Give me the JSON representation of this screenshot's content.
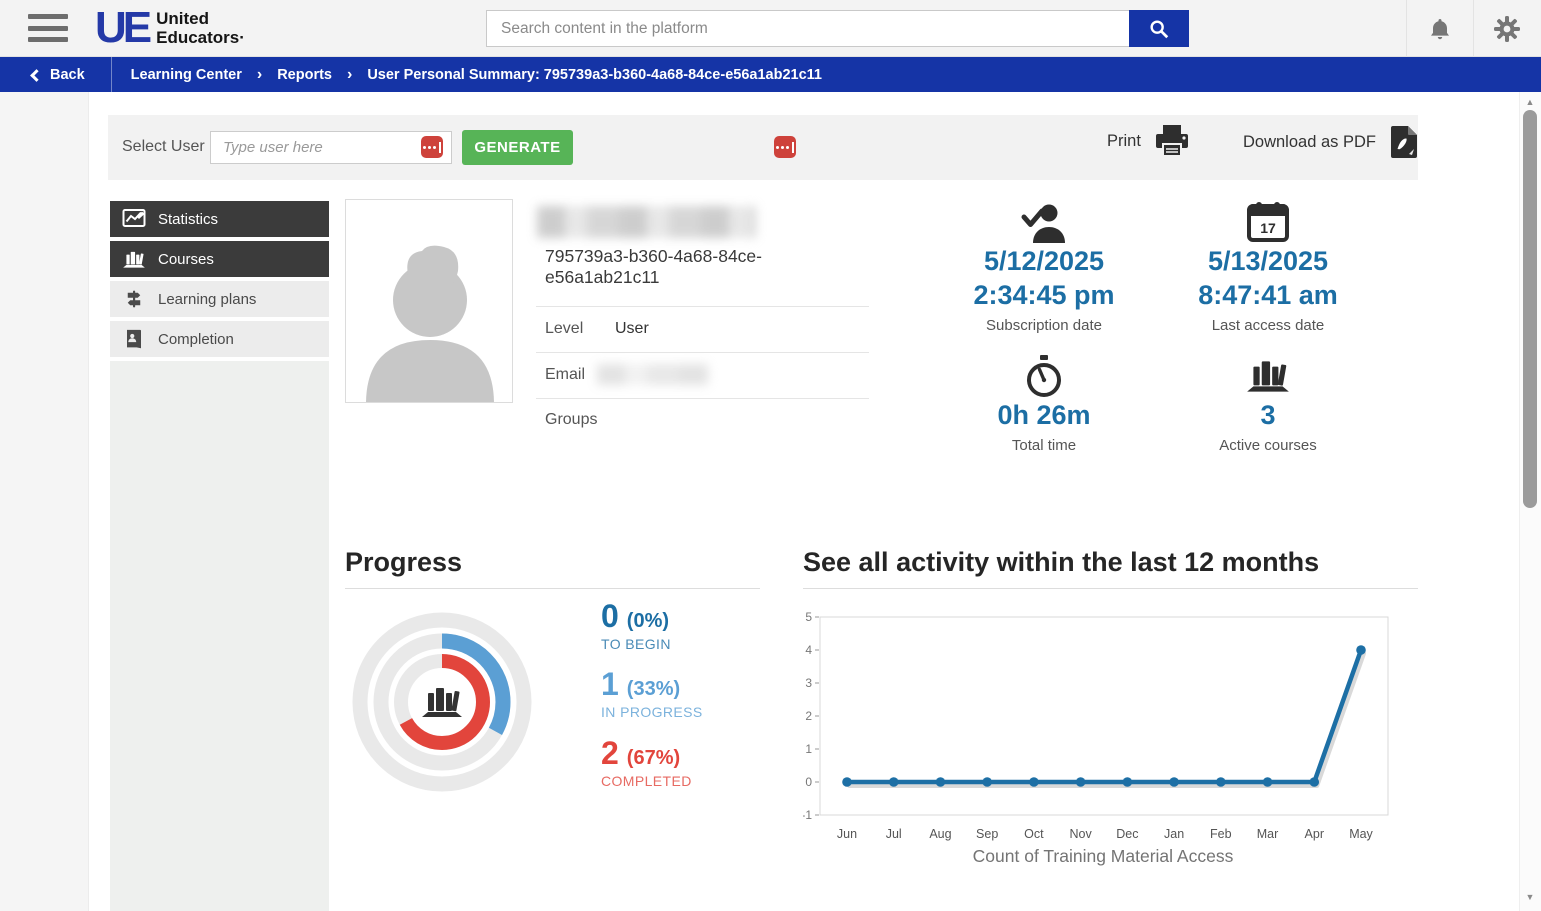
{
  "brand": {
    "mark": "UE",
    "name_line1": "United",
    "name_line2": "Educators·"
  },
  "topbar": {
    "search_placeholder": "Search content in the platform",
    "search_value": ""
  },
  "breadcrumb": {
    "back_label": "Back",
    "items": [
      "Learning Center",
      "Reports",
      "User Personal Summary: 795739a3-b360-4a68-84ce-e56a1ab21c11"
    ]
  },
  "toolbar": {
    "select_user_label": "Select User",
    "user_input_placeholder": "Type user here",
    "user_input_value": "",
    "generate_label": "GENERATE",
    "print_label": "Print",
    "download_pdf_label": "Download as PDF"
  },
  "sidebar": {
    "items": [
      {
        "label": "Statistics",
        "icon": "line-chart",
        "active": true
      },
      {
        "label": "Courses",
        "icon": "books",
        "active": true
      },
      {
        "label": "Learning plans",
        "icon": "signpost",
        "active": false
      },
      {
        "label": "Completion",
        "icon": "report-book",
        "active": false
      }
    ]
  },
  "profile": {
    "user_id_line1": "795739a3-b360-4a68-84ce-",
    "user_id_line2": "e56a1ab21c11",
    "level_label": "Level",
    "level_value": "User",
    "email_label": "Email",
    "groups_label": "Groups"
  },
  "stats": [
    {
      "icon": "user-check",
      "line1": "5/12/2025",
      "line2": "2:34:45 pm",
      "label": "Subscription date"
    },
    {
      "icon": "calendar",
      "icon_day": "17",
      "line1": "5/13/2025",
      "line2": "8:47:41 am",
      "label": "Last access date"
    },
    {
      "icon": "stopwatch",
      "line1": "0h 26m",
      "line2": "",
      "label": "Total time"
    },
    {
      "icon": "books",
      "line1": "3",
      "line2": "",
      "label": "Active courses"
    }
  ],
  "progress": {
    "title": "Progress"
  },
  "activity": {
    "title": "See all activity within the last 12 months"
  },
  "chart_data": [
    {
      "type": "donut",
      "title": "Progress",
      "track_color": "#e9e9e9",
      "center_icon": "books",
      "rings_outer_to_inner": [
        {
          "label": "TO BEGIN",
          "count": 0,
          "pct": 0,
          "pct_label": "(0%)",
          "color": "#1c6ea4"
        },
        {
          "label": "IN PROGRESS",
          "count": 1,
          "pct": 33,
          "pct_label": "(33%)",
          "color": "#5b9fd4"
        },
        {
          "label": "COMPLETED",
          "count": 2,
          "pct": 67,
          "pct_label": "(67%)",
          "color": "#e2453c"
        }
      ]
    },
    {
      "type": "line",
      "title": "See all activity within the last 12 months",
      "x": [
        "Jun",
        "Jul",
        "Aug",
        "Sep",
        "Oct",
        "Nov",
        "Dec",
        "Jan",
        "Feb",
        "Mar",
        "Apr",
        "May"
      ],
      "series": [
        {
          "name": "Count of Training Material Access",
          "values": [
            0,
            0,
            0,
            0,
            0,
            0,
            0,
            0,
            0,
            0,
            0,
            4
          ]
        }
      ],
      "xlabel": "Count of Training Material Access",
      "ylim": [
        -1,
        5
      ],
      "yticks": [
        5,
        4,
        3,
        2,
        1,
        0,
        -1
      ],
      "line_color": "#1d6fa5",
      "grid": false,
      "legend_position": "none"
    }
  ],
  "icons": {
    "breadcrumb_separator": "›",
    "scroll_up": "▲",
    "scroll_down": "▼"
  },
  "colors": {
    "brand_blue": "#1534a6",
    "stat_blue": "#1c6ea4",
    "in_progress_blue": "#5b9fd4",
    "completed_red": "#e2453c",
    "generate_green": "#57b457",
    "sidebar_dark": "#3b3b3b",
    "password_icon_red": "#ce423b"
  }
}
